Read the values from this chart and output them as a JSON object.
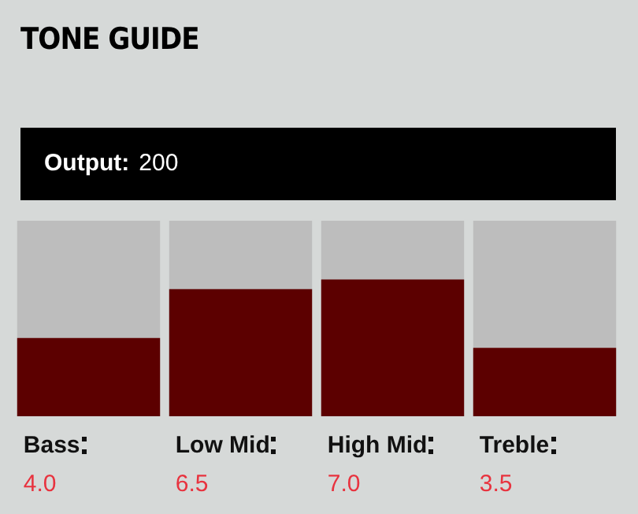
{
  "chart_data": {
    "type": "bar",
    "title": "TONE GUIDE",
    "annotations": [
      "Output:",
      "200"
    ],
    "categories": [
      "Bass",
      "Low Mid",
      "High Mid",
      "Treble"
    ],
    "values": [
      4.0,
      6.5,
      7.0,
      3.5
    ],
    "value_labels": [
      "4.0",
      "6.5",
      "7.0",
      "3.5"
    ],
    "color": "#5c0000",
    "ylim": [
      0,
      10
    ],
    "tick_labels": "x",
    "grid": false,
    "legend": false
  }
}
